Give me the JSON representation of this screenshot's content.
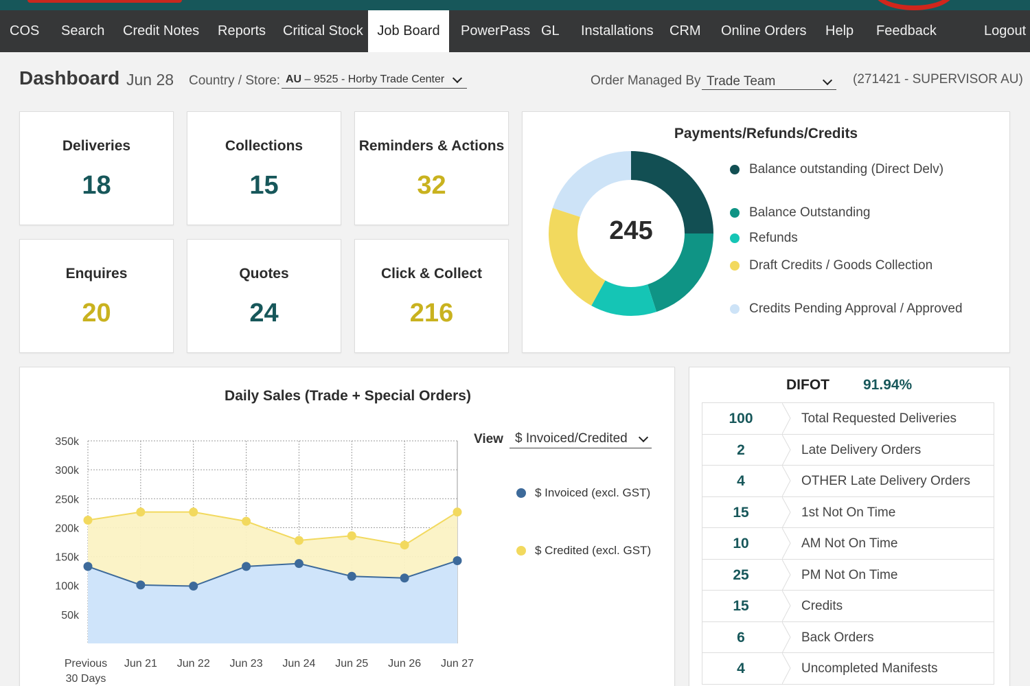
{
  "nav": {
    "items": [
      "COS",
      "Search",
      "Credit Notes",
      "Reports",
      "Critical Stock",
      "Job Board",
      "PowerPass",
      "GL",
      "Installations",
      "CRM",
      "Online Orders",
      "Help",
      "Feedback"
    ],
    "active": "Job Board",
    "logout": "Logout"
  },
  "header": {
    "title": "Dashboard",
    "date": "Jun 28",
    "country_store_label": "Country / Store:",
    "store_country": "AU",
    "store_value": " – 9525 - Horby Trade Center",
    "managed_by_label": "Order Managed By",
    "managed_by_value": "Trade Team",
    "supervisor": "(271421 - SUPERVISOR AU)"
  },
  "tiles": [
    {
      "title": "Deliveries",
      "value": "18",
      "color": "#17575a"
    },
    {
      "title": "Collections",
      "value": "15",
      "color": "#17575a"
    },
    {
      "title": "Reminders & Actions",
      "value": "32",
      "color": "#c9b21f"
    },
    {
      "title": "Enquires",
      "value": "20",
      "color": "#c9b21f"
    },
    {
      "title": "Quotes",
      "value": "24",
      "color": "#17575a"
    },
    {
      "title": "Click & Collect",
      "value": "216",
      "color": "#c9b21f"
    }
  ],
  "payments": {
    "title": "Payments/Refunds/Credits",
    "total": "245",
    "segments": [
      {
        "label": "Balance outstanding (Direct Delv)",
        "value": 25,
        "color": "#124f53"
      },
      {
        "label": "Balance Outstanding",
        "value": 20,
        "color": "#0f9485"
      },
      {
        "label": "Refunds",
        "value": 13,
        "color": "#15c5b5"
      },
      {
        "label": "Draft Credits / Goods Collection",
        "value": 22,
        "color": "#f2d95e"
      },
      {
        "label": "Credits Pending Approval / Approved",
        "value": 20,
        "color": "#cde3f7"
      }
    ]
  },
  "chart_data": {
    "type": "area",
    "title": "Daily Sales (Trade + Special Orders)",
    "categories": [
      "Previous 30 Days",
      "Jun 21",
      "Jun 22",
      "Jun 23",
      "Jun 24",
      "Jun 25",
      "Jun 26",
      "Jun 27"
    ],
    "y_ticks": [
      "350k",
      "300k",
      "250k",
      "200k",
      "150k",
      "100k",
      "50k"
    ],
    "ylim": [
      0,
      350000
    ],
    "grid": true,
    "series": [
      {
        "name": "$ Invoiced (excl. GST)",
        "color": "#3d6a9a",
        "fill": "#cfe4fa",
        "values": [
          133000,
          101000,
          99000,
          133000,
          138000,
          116000,
          113000,
          143000
        ]
      },
      {
        "name": "$ Credited (excl. GST)",
        "color": "#f2d95e",
        "fill": "#fbf2c4",
        "values": [
          213000,
          227000,
          227000,
          211000,
          178000,
          186000,
          170000,
          227000
        ]
      }
    ],
    "view_label": "View",
    "view_value": "$ Invoiced/Credited"
  },
  "difot": {
    "label": "DIFOT",
    "value": "91.94%",
    "rows": [
      {
        "value": "100",
        "label": "Total Requested Deliveries"
      },
      {
        "value": "2",
        "label": "Late Delivery Orders"
      },
      {
        "value": "4",
        "label": "OTHER Late Delivery Orders"
      },
      {
        "value": "15",
        "label": "1st Not On Time"
      },
      {
        "value": "10",
        "label": "AM Not On Time"
      },
      {
        "value": "25",
        "label": "PM Not On Time"
      },
      {
        "value": "15",
        "label": "Credits"
      },
      {
        "value": "6",
        "label": "Back Orders"
      },
      {
        "value": "4",
        "label": "Uncompleted Manifests"
      }
    ]
  }
}
